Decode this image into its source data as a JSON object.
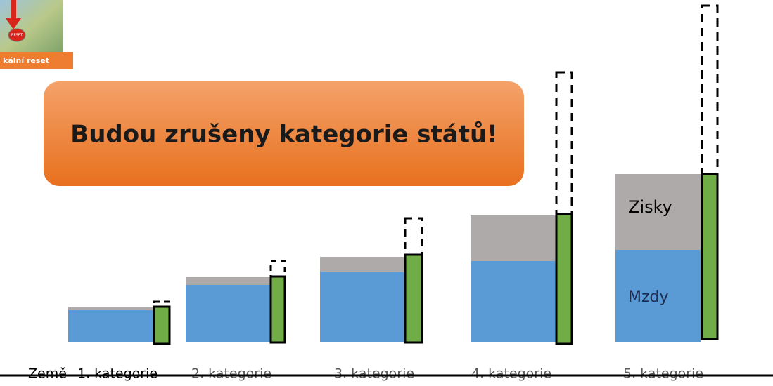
{
  "reset_button": {
    "label": "kální reset",
    "badge": "RESET"
  },
  "banner": {
    "text": "Budou zrušeny kategorie států!"
  },
  "bar_labels": {
    "upper": "Zisky",
    "lower": "Mzdy"
  },
  "axis": {
    "start": "Země",
    "categories": [
      "1. kategorie",
      "2. kategorie",
      "3. kategorie",
      "4. kategorie",
      "5. kategorie"
    ]
  }
}
